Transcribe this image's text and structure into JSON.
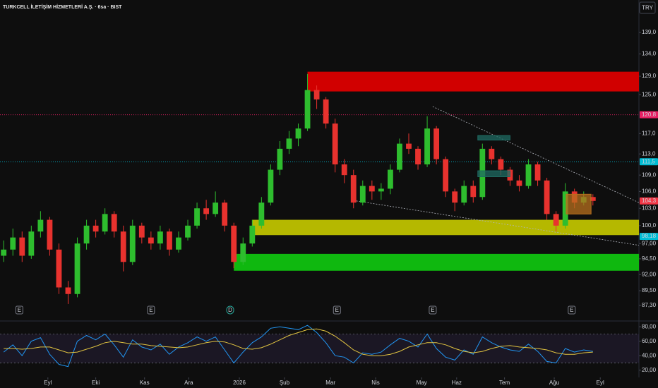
{
  "header": {
    "title": "TURKCELL İLETİŞİM HİZMETLERİ A.Ş. · 6sa · BIST",
    "currency": "TRY"
  },
  "chart_data": [
    {
      "type": "candlestick",
      "open": [
        95,
        96,
        98,
        95,
        99,
        101,
        96,
        90,
        89,
        97,
        100,
        99,
        102,
        99,
        94,
        100,
        98,
        97,
        99,
        96,
        98,
        100,
        103,
        102,
        104,
        100,
        94,
        97,
        100,
        104,
        110,
        114,
        116,
        118,
        126,
        124,
        119,
        111,
        109,
        104,
        107,
        106,
        106.5,
        110,
        115,
        114,
        111,
        118,
        112,
        106,
        104,
        107,
        105,
        114,
        112,
        110,
        108,
        107,
        111,
        108,
        102,
        100,
        106,
        104,
        105
      ],
      "high": [
        97.5,
        99.5,
        99,
        100,
        102.5,
        101.5,
        97,
        91,
        98,
        101,
        101,
        103,
        102.5,
        100,
        101,
        100.5,
        99,
        100,
        99.5,
        99,
        101,
        104,
        104.5,
        106,
        104.5,
        100.5,
        98,
        101,
        105,
        111,
        115.5,
        117.5,
        119,
        129.5,
        127,
        124.5,
        120,
        112,
        110,
        108,
        108,
        107.5,
        111,
        116,
        117,
        114.5,
        120.5,
        118.5,
        112.5,
        106.5,
        108,
        108,
        115,
        114.5,
        112.5,
        110.5,
        109,
        112,
        111.5,
        108.5,
        102.5,
        107.5,
        106.5,
        106,
        105.5
      ],
      "low": [
        94,
        95,
        94,
        94.5,
        98,
        95,
        89,
        87.5,
        88.5,
        96,
        98,
        98.5,
        98,
        92.5,
        93.5,
        97,
        96,
        96,
        95,
        95.5,
        97.5,
        99.5,
        101,
        101.5,
        99,
        93,
        93.5,
        96.5,
        99.5,
        103.5,
        109,
        113,
        114.5,
        117.5,
        122,
        118,
        109.5,
        107.5,
        103,
        103.5,
        104.5,
        104.5,
        105.5,
        109.5,
        113,
        110,
        110.5,
        111,
        105,
        102.5,
        103.5,
        104,
        104.5,
        111,
        109,
        107,
        106,
        106.5,
        107,
        101,
        99,
        99.5,
        103,
        103.5,
        103.5
      ],
      "close": [
        96,
        98,
        95,
        99,
        101,
        96,
        90,
        89,
        97,
        100,
        99,
        102,
        99,
        94,
        100,
        98,
        97,
        99,
        96,
        98,
        100,
        103,
        102,
        104,
        100,
        94,
        97,
        100,
        104,
        110,
        114,
        116,
        118,
        126,
        124,
        119,
        111,
        109,
        104,
        107,
        106,
        106.5,
        110,
        115,
        114,
        111,
        118,
        112,
        106,
        104,
        107,
        105,
        114,
        112,
        110,
        108,
        107,
        111,
        108,
        102,
        100,
        106,
        104,
        105,
        104.3
      ],
      "up_color": "#2ebd2e",
      "down_color": "#e8322e",
      "xlim": [
        -0.4,
        69
      ],
      "ylim": [
        85,
        146.9
      ],
      "log_scale": true,
      "grid": false,
      "yticks": [
        {
          "value": 139,
          "label": "139,0"
        },
        {
          "value": 134,
          "label": "134,0"
        },
        {
          "value": 129,
          "label": "129,0"
        },
        {
          "value": 125,
          "label": "125,0"
        },
        {
          "value": 117,
          "label": "117,0"
        },
        {
          "value": 113,
          "label": "113,0"
        },
        {
          "value": 109,
          "label": "109,0"
        },
        {
          "value": 106,
          "label": "106,0"
        },
        {
          "value": 103,
          "label": "103,0"
        },
        {
          "value": 100,
          "label": "100,0"
        },
        {
          "value": 97,
          "label": "97,00"
        },
        {
          "value": 94.5,
          "label": "94,50"
        },
        {
          "value": 92,
          "label": "92,00"
        },
        {
          "value": 89.5,
          "label": "89,50"
        },
        {
          "value": 87.3,
          "label": "87,30"
        }
      ],
      "xticks": [
        {
          "value": 4.8,
          "label": "Eyl"
        },
        {
          "value": 10,
          "label": "Eki"
        },
        {
          "value": 15.3,
          "label": "Kas"
        },
        {
          "value": 20.1,
          "label": "Ara"
        },
        {
          "value": 25.6,
          "label": "2026"
        },
        {
          "value": 30.5,
          "label": "Şub"
        },
        {
          "value": 35.5,
          "label": "Mar"
        },
        {
          "value": 40.4,
          "label": "Nis"
        },
        {
          "value": 45.4,
          "label": "May"
        },
        {
          "value": 49.2,
          "label": "Haz"
        },
        {
          "value": 54.4,
          "label": "Tem"
        },
        {
          "value": 59.8,
          "label": "Ağu"
        },
        {
          "value": 64.8,
          "label": "Eyl"
        }
      ],
      "zones": [
        {
          "low": 125.7,
          "high": 130,
          "start": 33,
          "color": "#d10000"
        },
        {
          "low": 98.4,
          "high": 101,
          "start": 27,
          "color": "#b5b800"
        },
        {
          "low": 92.6,
          "high": 95.3,
          "start": 25,
          "color": "#0fb80f"
        }
      ],
      "boxes": [
        {
          "low": 115.7,
          "high": 116.6,
          "start": 51.5,
          "end": 55,
          "color": "#1f6b63"
        },
        {
          "low": 108.7,
          "high": 109.8,
          "start": 51.5,
          "end": 55,
          "color": "#1f6b63"
        },
        {
          "low": 102,
          "high": 105.5,
          "start": 61.1,
          "end": 63.8,
          "color": "#b8701e"
        }
      ],
      "trend_lines": [
        {
          "x": [
            46.6,
            69
          ],
          "y": [
            122.5,
            104
          ]
        },
        {
          "x": [
            38.3,
            69
          ],
          "y": [
            104.3,
            96.7
          ]
        }
      ],
      "price_lines": [
        {
          "value": 120.8,
          "label": "120,8",
          "color": "#e91e63",
          "line": true
        },
        {
          "value": 111.5,
          "label": "111,5",
          "color": "#00bcd4",
          "line": true
        },
        {
          "value": 104.3,
          "label": "104,3",
          "color": "#f23645",
          "line": false
        },
        {
          "value": 98.18,
          "label": "98,18",
          "color": "#00bcd4",
          "line": false
        }
      ],
      "events": [
        {
          "x": 1.7,
          "label": "E"
        },
        {
          "x": 16,
          "label": "E"
        },
        {
          "x": 24.6,
          "label": "D"
        },
        {
          "x": 36.2,
          "label": "E"
        },
        {
          "x": 46.6,
          "label": "E"
        },
        {
          "x": 61.7,
          "label": "E"
        }
      ]
    },
    {
      "type": "line",
      "ylim": [
        10,
        88
      ],
      "yticks": [
        {
          "value": 80,
          "label": "80,00"
        },
        {
          "value": 60,
          "label": "60,00"
        },
        {
          "value": 40,
          "label": "40,00"
        },
        {
          "value": 20,
          "label": "20,00"
        }
      ],
      "bands": [
        30,
        70
      ],
      "series": [
        {
          "color": "#2196f3",
          "values": [
            45,
            55,
            40,
            60,
            65,
            42,
            28,
            25,
            60,
            68,
            62,
            70,
            55,
            38,
            62,
            52,
            48,
            56,
            42,
            52,
            58,
            66,
            60,
            66,
            48,
            30,
            45,
            58,
            66,
            78,
            80,
            78,
            76,
            82,
            72,
            58,
            40,
            38,
            30,
            44,
            42,
            45,
            55,
            64,
            60,
            52,
            70,
            50,
            38,
            34,
            48,
            42,
            66,
            58,
            52,
            48,
            46,
            56,
            46,
            32,
            30,
            50,
            45,
            48,
            46
          ]
        },
        {
          "color": "#e0c341",
          "values": [
            50,
            50,
            49,
            50,
            52,
            52,
            48,
            44,
            45,
            49,
            53,
            58,
            60,
            58,
            56,
            56,
            54,
            53,
            52,
            51,
            52,
            55,
            58,
            60,
            59,
            55,
            50,
            49,
            51,
            56,
            62,
            68,
            72,
            76,
            77,
            74,
            67,
            58,
            48,
            42,
            40,
            40,
            42,
            46,
            52,
            55,
            58,
            58,
            55,
            50,
            46,
            44,
            46,
            50,
            53,
            54,
            52,
            51,
            50,
            48,
            44,
            42,
            42,
            44,
            45
          ]
        }
      ]
    }
  ]
}
